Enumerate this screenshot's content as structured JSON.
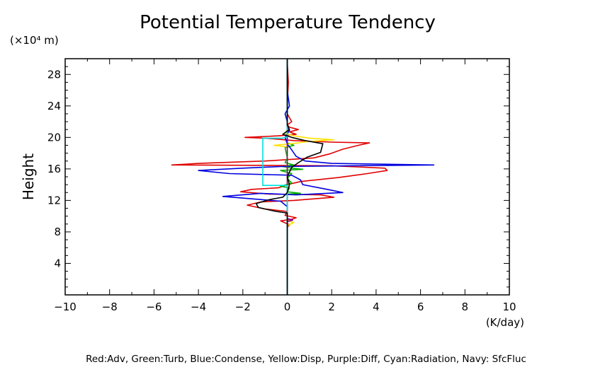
{
  "chart_data": {
    "type": "line",
    "title": "Potential Temperature Tendency",
    "ylabel": "Height",
    "yunit_label": "(×10⁴ m)",
    "xlabel": "(K/day)",
    "xlim": [
      -10,
      10
    ],
    "ylim": [
      0,
      30
    ],
    "xticks": [
      -10,
      -8,
      -6,
      -4,
      -2,
      0,
      2,
      4,
      6,
      8,
      10
    ],
    "yticks": [
      4,
      8,
      12,
      16,
      20,
      24,
      28
    ],
    "grid": false,
    "legend_text": "Red:Adv, Green:Turb, Blue:Condense, Yellow:Disp, Purple:Diff, Cyan:Radiation, Navy: SfcFluc",
    "series": [
      {
        "name": "Adv",
        "color": "#e00000",
        "points": [
          [
            0,
            0
          ],
          [
            0,
            8.6
          ],
          [
            0.1,
            8.9
          ],
          [
            -0.3,
            9.4
          ],
          [
            0.2,
            9.6
          ],
          [
            0.4,
            9.8
          ],
          [
            -0.1,
            10.1
          ],
          [
            0,
            10.6
          ],
          [
            -1,
            10.9
          ],
          [
            -1.8,
            11.4
          ],
          [
            -1.2,
            11.8
          ],
          [
            0.3,
            12
          ],
          [
            2.1,
            12.4
          ],
          [
            1.5,
            12.7
          ],
          [
            -0.8,
            12.8
          ],
          [
            -2.1,
            13.1
          ],
          [
            -1.6,
            13.4
          ],
          [
            -0.4,
            13.6
          ],
          [
            0,
            14
          ],
          [
            0.6,
            14.4
          ],
          [
            2.3,
            14.9
          ],
          [
            3.6,
            15.4
          ],
          [
            4.5,
            15.8
          ],
          [
            4.4,
            16.1
          ],
          [
            2,
            16.4
          ],
          [
            -5.2,
            16.5
          ],
          [
            -4,
            16.7
          ],
          [
            -1,
            17
          ],
          [
            1.2,
            17.4
          ],
          [
            1.9,
            17.9
          ],
          [
            2.5,
            18.5
          ],
          [
            3.2,
            19
          ],
          [
            3.7,
            19.3
          ],
          [
            2,
            19.4
          ],
          [
            0.3,
            19.6
          ],
          [
            -1,
            19.9
          ],
          [
            -1.9,
            20
          ],
          [
            -0.4,
            20.2
          ],
          [
            0.4,
            20.4
          ],
          [
            0.1,
            20.7
          ],
          [
            0.5,
            21
          ],
          [
            0.1,
            21.3
          ],
          [
            0,
            21.6
          ],
          [
            0.2,
            22
          ],
          [
            0,
            23
          ],
          [
            0,
            24
          ],
          [
            0.05,
            27
          ],
          [
            0,
            29.6
          ],
          [
            0,
            30
          ]
        ]
      },
      {
        "name": "Turb",
        "color": "#00b000",
        "points": [
          [
            0,
            0
          ],
          [
            0,
            12.8
          ],
          [
            0.6,
            12.9
          ],
          [
            0,
            13.1
          ],
          [
            0.1,
            13.6
          ],
          [
            -0.3,
            13.8
          ],
          [
            0.2,
            14.2
          ],
          [
            0,
            14.8
          ],
          [
            0.2,
            15.4
          ],
          [
            -0.3,
            15.8
          ],
          [
            0.7,
            15.95
          ],
          [
            0.2,
            16.1
          ],
          [
            -0.2,
            16.3
          ],
          [
            0.3,
            16.5
          ],
          [
            -0.1,
            16.8
          ],
          [
            0,
            17.4
          ],
          [
            -0.1,
            18.7
          ],
          [
            0.3,
            19
          ],
          [
            0,
            19.3
          ],
          [
            0,
            30
          ]
        ]
      },
      {
        "name": "Condense",
        "color": "#0000e0",
        "points": [
          [
            0,
            0
          ],
          [
            0,
            11.2
          ],
          [
            -0.3,
            11.9
          ],
          [
            -2.9,
            12.5
          ],
          [
            -1.2,
            12.9
          ],
          [
            0.4,
            12.7
          ],
          [
            2.5,
            13
          ],
          [
            1.8,
            13.4
          ],
          [
            0.7,
            14
          ],
          [
            0.6,
            14.6
          ],
          [
            0.2,
            15.2
          ],
          [
            -2.6,
            15.4
          ],
          [
            -4,
            15.8
          ],
          [
            -2,
            16.1
          ],
          [
            -0.3,
            16.3
          ],
          [
            6.6,
            16.5
          ],
          [
            2,
            16.7
          ],
          [
            0.8,
            17
          ],
          [
            0.4,
            17.6
          ],
          [
            0.2,
            18.4
          ],
          [
            0,
            19.2
          ],
          [
            -0.1,
            20
          ],
          [
            0.1,
            20.9
          ],
          [
            0,
            21.4
          ],
          [
            0,
            22
          ],
          [
            -0.1,
            23
          ],
          [
            0.1,
            24
          ],
          [
            0,
            26
          ],
          [
            0,
            30
          ]
        ]
      },
      {
        "name": "Disp",
        "color": "#ffe000",
        "points": [
          [
            0,
            0
          ],
          [
            0,
            8.8
          ],
          [
            0.3,
            9.2
          ],
          [
            0,
            9.4
          ],
          [
            0,
            18.8
          ],
          [
            -0.6,
            19
          ],
          [
            0.2,
            19.2
          ],
          [
            1,
            19.5
          ],
          [
            2.1,
            19.7
          ],
          [
            1,
            19.9
          ],
          [
            0.3,
            20.2
          ],
          [
            -0.1,
            20.5
          ],
          [
            0,
            21
          ],
          [
            0,
            30
          ]
        ]
      },
      {
        "name": "Diff",
        "color": "#8000a0",
        "points": [
          [
            0,
            0
          ],
          [
            0,
            9.3
          ],
          [
            0.25,
            9.5
          ],
          [
            0,
            9.7
          ],
          [
            0,
            30
          ]
        ]
      },
      {
        "name": "Radiation",
        "color": "#00e0e0",
        "points": [
          [
            0,
            0
          ],
          [
            0,
            13.9
          ],
          [
            -1.1,
            13.9
          ],
          [
            -1.1,
            19.9
          ],
          [
            -0.2,
            19.9
          ],
          [
            0,
            20.1
          ],
          [
            0,
            30
          ]
        ]
      },
      {
        "name": "Black",
        "color": "#000000",
        "points": [
          [
            0,
            0
          ],
          [
            0,
            10.4
          ],
          [
            -0.5,
            10.6
          ],
          [
            -1.3,
            11.1
          ],
          [
            -1.4,
            11.6
          ],
          [
            -0.8,
            12.1
          ],
          [
            -0.2,
            12.4
          ],
          [
            0,
            13
          ],
          [
            0.1,
            14
          ],
          [
            0,
            15
          ],
          [
            0.2,
            16.2
          ],
          [
            0.5,
            16.8
          ],
          [
            0.9,
            17.5
          ],
          [
            1.5,
            18.1
          ],
          [
            1.6,
            19.2
          ],
          [
            0.8,
            19.6
          ],
          [
            0.2,
            20
          ],
          [
            -0.2,
            20.4
          ],
          [
            0.1,
            21
          ],
          [
            0,
            21.6
          ],
          [
            0,
            30
          ]
        ]
      }
    ]
  }
}
